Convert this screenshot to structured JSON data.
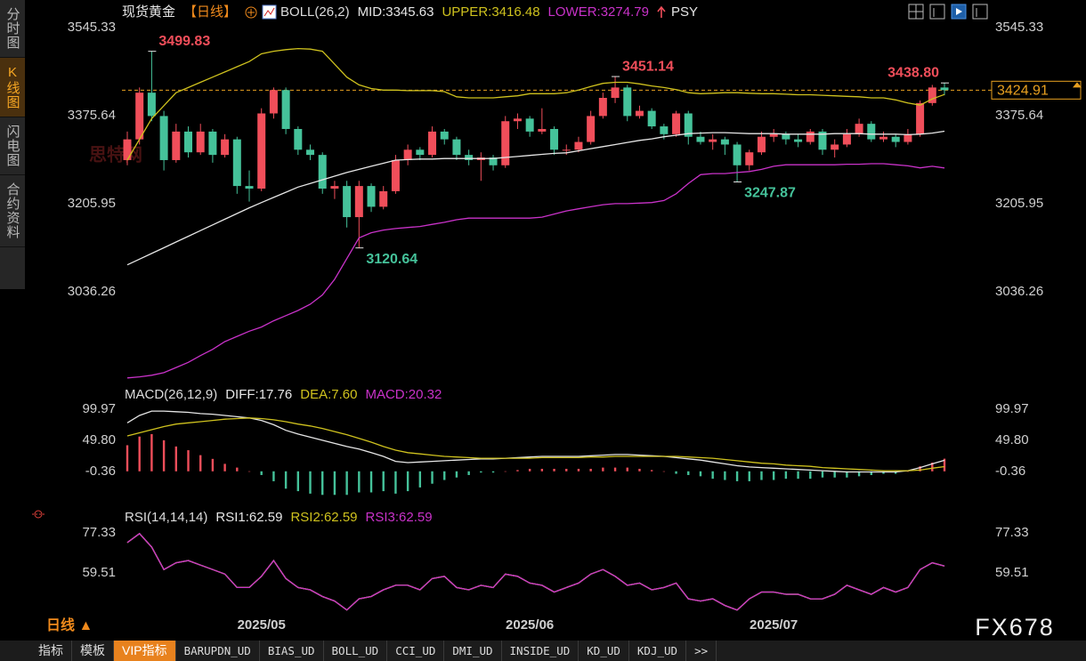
{
  "chart_data": [
    {
      "type": "candlestick",
      "title": "现货黄金",
      "period": "【日线】",
      "indicator": "BOLL(26,2)",
      "extra_indicator": "PSY",
      "categories": [
        null,
        null,
        null,
        null,
        null,
        null,
        null,
        null,
        null,
        null,
        null,
        "2025/05",
        null,
        null,
        null,
        null,
        null,
        null,
        null,
        null,
        null,
        null,
        null,
        null,
        null,
        null,
        null,
        null,
        null,
        null,
        null,
        null,
        null,
        "2025/06",
        null,
        null,
        null,
        null,
        null,
        null,
        null,
        null,
        null,
        null,
        null,
        null,
        null,
        null,
        null,
        null,
        null,
        null,
        null,
        "2025/07",
        null,
        null,
        null,
        null,
        null,
        null,
        null,
        null,
        null,
        null,
        null,
        null,
        null,
        null
      ],
      "open": [
        3290,
        3330,
        3420,
        3375,
        3290,
        3345,
        3305,
        3345,
        3300,
        3330,
        3240,
        3235,
        3380,
        3425,
        3350,
        3310,
        3300,
        3235,
        3240,
        3180,
        3240,
        3200,
        3230,
        3290,
        3310,
        3300,
        3345,
        3330,
        3300,
        3290,
        3295,
        3280,
        3365,
        3370,
        3345,
        3350,
        3310,
        3310,
        3325,
        3375,
        3410,
        3430,
        3375,
        3385,
        3355,
        3340,
        3380,
        3335,
        3325,
        3330,
        3320,
        3280,
        3305,
        3335,
        3340,
        3330,
        3325,
        3345,
        3310,
        3320,
        3340,
        3360,
        3330,
        3335,
        3325,
        3340,
        3400,
        3430
      ],
      "high": [
        3345,
        3430,
        3499.83,
        3385,
        3360,
        3355,
        3360,
        3350,
        3340,
        3335,
        3270,
        3390,
        3430,
        3430,
        3355,
        3320,
        3305,
        3250,
        3250,
        3250,
        3245,
        3240,
        3300,
        3320,
        3315,
        3355,
        3350,
        3335,
        3310,
        3305,
        3300,
        3375,
        3380,
        3375,
        3390,
        3355,
        3320,
        3335,
        3385,
        3420,
        3451.14,
        3435,
        3395,
        3390,
        3360,
        3385,
        3385,
        3345,
        3340,
        3335,
        3325,
        3310,
        3345,
        3350,
        3345,
        3340,
        3350,
        3350,
        3330,
        3350,
        3370,
        3365,
        3345,
        3340,
        3350,
        3405,
        3435,
        3438.8
      ],
      "low": [
        3280,
        3320,
        3365,
        3270,
        3285,
        3295,
        3300,
        3285,
        3295,
        3225,
        3210,
        3230,
        3370,
        3340,
        3300,
        3290,
        3225,
        3215,
        3160,
        3120.64,
        3190,
        3195,
        3225,
        3280,
        3290,
        3295,
        3320,
        3290,
        3280,
        3250,
        3270,
        3275,
        3350,
        3335,
        3340,
        3300,
        3300,
        3305,
        3320,
        3370,
        3400,
        3365,
        3370,
        3350,
        3330,
        3335,
        3320,
        3320,
        3310,
        3300,
        3247.87,
        3270,
        3300,
        3325,
        3320,
        3315,
        3320,
        3300,
        3295,
        3315,
        3335,
        3325,
        3325,
        3315,
        3320,
        3335,
        3395,
        3415
      ],
      "close": [
        3330,
        3420,
        3375,
        3290,
        3345,
        3305,
        3345,
        3300,
        3330,
        3240,
        3235,
        3380,
        3425,
        3350,
        3310,
        3300,
        3235,
        3240,
        3180,
        3240,
        3200,
        3230,
        3290,
        3310,
        3300,
        3345,
        3330,
        3300,
        3290,
        3295,
        3280,
        3365,
        3370,
        3345,
        3350,
        3310,
        3310,
        3325,
        3375,
        3410,
        3430,
        3375,
        3385,
        3355,
        3340,
        3380,
        3335,
        3325,
        3330,
        3320,
        3280,
        3305,
        3335,
        3340,
        3330,
        3325,
        3345,
        3310,
        3320,
        3340,
        3360,
        3330,
        3335,
        3325,
        3340,
        3400,
        3430,
        3424.91
      ],
      "up_color": "#f04e5a",
      "down_color": "#45c29a",
      "series": [
        {
          "name": "MID:3345.63",
          "color": "#e6e6e6",
          "values": [
            3088,
            3099,
            3110,
            3121,
            3132,
            3143,
            3154,
            3165,
            3176,
            3187,
            3198,
            3208,
            3218,
            3228,
            3238,
            3245,
            3252,
            3259,
            3266,
            3272,
            3278,
            3284,
            3290,
            3291,
            3292,
            3292,
            3293,
            3293,
            3293,
            3293,
            3293,
            3295,
            3297,
            3299,
            3301,
            3303,
            3304,
            3308,
            3312,
            3316,
            3320,
            3324,
            3328,
            3331,
            3335,
            3338,
            3341,
            3342,
            3343,
            3343,
            3342,
            3341,
            3341,
            3341,
            3340,
            3340,
            3340,
            3340,
            3341,
            3341,
            3341,
            3340,
            3340,
            3340,
            3339,
            3340,
            3342,
            3345.63
          ]
        },
        {
          "name": "UPPER:3416.48",
          "color": "#cfc21e",
          "values": [
            3290,
            3330,
            3370,
            3395,
            3420,
            3430,
            3440,
            3450,
            3460,
            3470,
            3480,
            3495,
            3500,
            3503,
            3505,
            3504,
            3500,
            3475,
            3450,
            3435,
            3428,
            3425,
            3425,
            3424,
            3424,
            3424,
            3422,
            3412,
            3410,
            3410,
            3410,
            3412,
            3414,
            3418,
            3418,
            3418,
            3420,
            3425,
            3432,
            3438,
            3440,
            3440,
            3437,
            3433,
            3430,
            3426,
            3420,
            3418,
            3419,
            3420,
            3420,
            3419,
            3418,
            3418,
            3417,
            3416,
            3416,
            3415,
            3414,
            3413,
            3412,
            3410,
            3410,
            3406,
            3400,
            3396,
            3408,
            3416.48
          ]
        },
        {
          "name": "LOWER:3274.79",
          "color": "#c932c9",
          "values": [
            2870,
            2872,
            2875,
            2880,
            2890,
            2900,
            2913,
            2925,
            2940,
            2950,
            2960,
            2968,
            2980,
            2990,
            3000,
            3012,
            3030,
            3060,
            3100,
            3140,
            3150,
            3155,
            3158,
            3160,
            3162,
            3166,
            3170,
            3175,
            3178,
            3178,
            3178,
            3178,
            3178,
            3178,
            3180,
            3186,
            3192,
            3196,
            3200,
            3204,
            3206,
            3206,
            3207,
            3208,
            3212,
            3225,
            3245,
            3262,
            3264,
            3264,
            3266,
            3268,
            3272,
            3278,
            3281,
            3281,
            3281,
            3281,
            3281,
            3282,
            3282,
            3283,
            3283,
            3281,
            3279,
            3275,
            3278,
            3274.79
          ]
        }
      ],
      "annotations": [
        3499.83,
        3120.64,
        3451.14,
        3247.87,
        {
          "value": 3438.8,
          "label": "3438.80"
        }
      ],
      "high_label_color": "#f04e5a",
      "low_label_color": "#45c29a",
      "last_price": 3424.91,
      "last_price_color": "#e8a020",
      "ylim": [
        2861,
        3561
      ],
      "yticks": [
        3545.33,
        3375.64,
        3205.95,
        3036.26
      ],
      "grid": false
    },
    {
      "type": "macd",
      "indicator": "MACD(26,12,9)",
      "series": [
        {
          "name": "DIFF:17.76",
          "color": "#e6e6e6",
          "kind": "line",
          "values": [
            78,
            90,
            97,
            97,
            96,
            95,
            93,
            92,
            90,
            88,
            86,
            82,
            75,
            66,
            60,
            55,
            50,
            45,
            40,
            36,
            30,
            24,
            16,
            14,
            15,
            16,
            17,
            18,
            19,
            20,
            20,
            21,
            22,
            23,
            24,
            24,
            24,
            24,
            25,
            26,
            27,
            27,
            26,
            25,
            24,
            22,
            20,
            18,
            15,
            12,
            9,
            7,
            6,
            5,
            4,
            3,
            2,
            1,
            0,
            -1,
            -1,
            -1,
            -1,
            -1,
            1,
            6,
            12,
            17.76
          ]
        },
        {
          "name": "DEA:7.60",
          "color": "#cfc21e",
          "kind": "line",
          "values": [
            57,
            62,
            67,
            72,
            76,
            78,
            80,
            82,
            84,
            85,
            86,
            85,
            83,
            80,
            76,
            73,
            69,
            64,
            59,
            53,
            47,
            40,
            34,
            30,
            28,
            26,
            24,
            23,
            22,
            21,
            21,
            21,
            21,
            21,
            22,
            22,
            22,
            22,
            23,
            23,
            24,
            24,
            24,
            24,
            24,
            24,
            23,
            22,
            21,
            19,
            17,
            15,
            13,
            12,
            10,
            9,
            8,
            6,
            5,
            4,
            3,
            2,
            1,
            1,
            1,
            2,
            5,
            7.6
          ]
        },
        {
          "name": "MACD:20.32",
          "color": "#c932c9",
          "kind": "bar",
          "up_color": "#f04e5a",
          "down_color": "#45c29a",
          "values": [
            42,
            56,
            60,
            50,
            40,
            34,
            26,
            20,
            12,
            6,
            0,
            -6,
            -16,
            -28,
            -32,
            -36,
            -38,
            -38,
            -38,
            -34,
            -34,
            -32,
            -36,
            -32,
            -26,
            -20,
            -14,
            -10,
            -6,
            -2,
            -2,
            0,
            2,
            4,
            4,
            4,
            4,
            4,
            4,
            6,
            6,
            6,
            4,
            2,
            0,
            -4,
            -6,
            -8,
            -12,
            -14,
            -16,
            -16,
            -14,
            -14,
            -12,
            -12,
            -12,
            -10,
            -10,
            -10,
            -8,
            -6,
            -4,
            -4,
            0,
            8,
            14,
            20.32
          ]
        }
      ],
      "ylim": [
        -54.8,
        117.2
      ],
      "yticks": [
        99.97,
        {
          "value": 49.8,
          "label": "49.80"
        },
        -0.36
      ],
      "grid": false
    },
    {
      "type": "line",
      "indicator": "RSI(14,14,14)",
      "series": [
        {
          "name": "RSI1:62.59",
          "color": "#e6e6e6",
          "values": [
            73,
            77,
            71,
            61,
            64,
            65,
            63,
            61,
            59,
            53,
            53,
            58,
            65,
            57,
            53,
            52,
            49,
            47,
            43,
            48,
            49,
            52,
            54,
            54,
            52,
            57,
            58,
            53,
            52,
            54,
            53,
            59,
            58,
            55,
            54,
            51,
            53,
            55,
            59,
            61,
            58,
            54,
            55,
            52,
            53,
            55,
            48,
            47,
            48,
            45,
            43,
            48,
            51,
            51,
            50,
            50,
            48,
            48,
            50,
            54,
            52,
            50,
            53,
            51,
            53,
            61,
            64,
            62.59
          ]
        },
        {
          "name": "RSI2:62.59",
          "color": "#cfc21e",
          "values": [
            73,
            77,
            71,
            61,
            64,
            65,
            63,
            61,
            59,
            53,
            53,
            58,
            65,
            57,
            53,
            52,
            49,
            47,
            43,
            48,
            49,
            52,
            54,
            54,
            52,
            57,
            58,
            53,
            52,
            54,
            53,
            59,
            58,
            55,
            54,
            51,
            53,
            55,
            59,
            61,
            58,
            54,
            55,
            52,
            53,
            55,
            48,
            47,
            48,
            45,
            43,
            48,
            51,
            51,
            50,
            50,
            48,
            48,
            50,
            54,
            52,
            50,
            53,
            51,
            53,
            61,
            64,
            62.59
          ]
        },
        {
          "name": "RSI3:62.59",
          "color": "#c932c9",
          "values": [
            73,
            77,
            71,
            61,
            64,
            65,
            63,
            61,
            59,
            53,
            53,
            58,
            65,
            57,
            53,
            52,
            49,
            47,
            43,
            48,
            49,
            52,
            54,
            54,
            52,
            57,
            58,
            53,
            52,
            54,
            53,
            59,
            58,
            55,
            54,
            51,
            53,
            55,
            59,
            61,
            58,
            54,
            55,
            52,
            53,
            55,
            48,
            47,
            48,
            45,
            43,
            48,
            51,
            51,
            50,
            50,
            48,
            48,
            50,
            54,
            52,
            50,
            53,
            51,
            53,
            61,
            64,
            62.59
          ]
        }
      ],
      "ylim": [
        41.3,
        86.8
      ],
      "yticks": [
        77.33,
        59.51
      ],
      "grid": false
    }
  ],
  "ui": {
    "sidebar": [
      "分时图",
      "K线图",
      "闪电图",
      "合约资料"
    ],
    "sidebar_active": 1,
    "period_button": "日线 ▲",
    "tabs": [
      "指标",
      "模板",
      "VIP指标",
      "BARUPDN_UD",
      "BIAS_UD",
      "BOLL_UD",
      "CCI_UD",
      "DMI_UD",
      "INSIDE_UD",
      "KD_UD",
      "KDJ_UD",
      ">>"
    ],
    "tabs_active": 2,
    "brand": "FX678",
    "watermark": "思特网"
  }
}
